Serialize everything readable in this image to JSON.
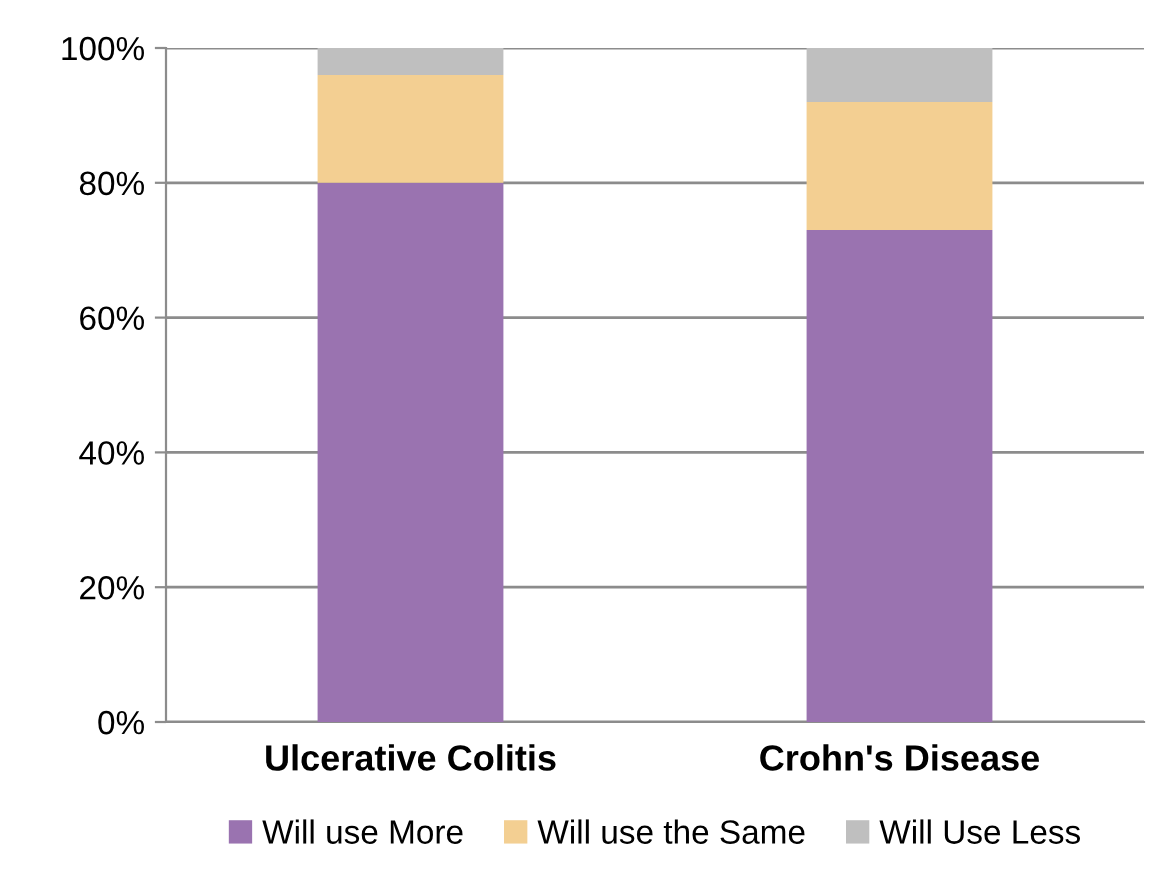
{
  "chart_data": {
    "type": "bar",
    "stacked": true,
    "categories": [
      "Ulcerative Colitis",
      "Crohn's Disease"
    ],
    "series": [
      {
        "name": "Will use More",
        "color": "#9a73b0",
        "values": [
          80,
          73
        ]
      },
      {
        "name": "Will use the Same",
        "color": "#f3cf92",
        "values": [
          16,
          19
        ]
      },
      {
        "name": "Will Use Less",
        "color": "#bfbfbf",
        "values": [
          4,
          8
        ]
      }
    ],
    "ylim": [
      0,
      100
    ],
    "yticks": [
      {
        "value": 0,
        "label": "0%"
      },
      {
        "value": 20,
        "label": "20%"
      },
      {
        "value": 40,
        "label": "40%"
      },
      {
        "value": 60,
        "label": "60%"
      },
      {
        "value": 80,
        "label": "80%"
      },
      {
        "value": 100,
        "label": "100%"
      }
    ],
    "grid": "y",
    "legend": "bottom"
  }
}
